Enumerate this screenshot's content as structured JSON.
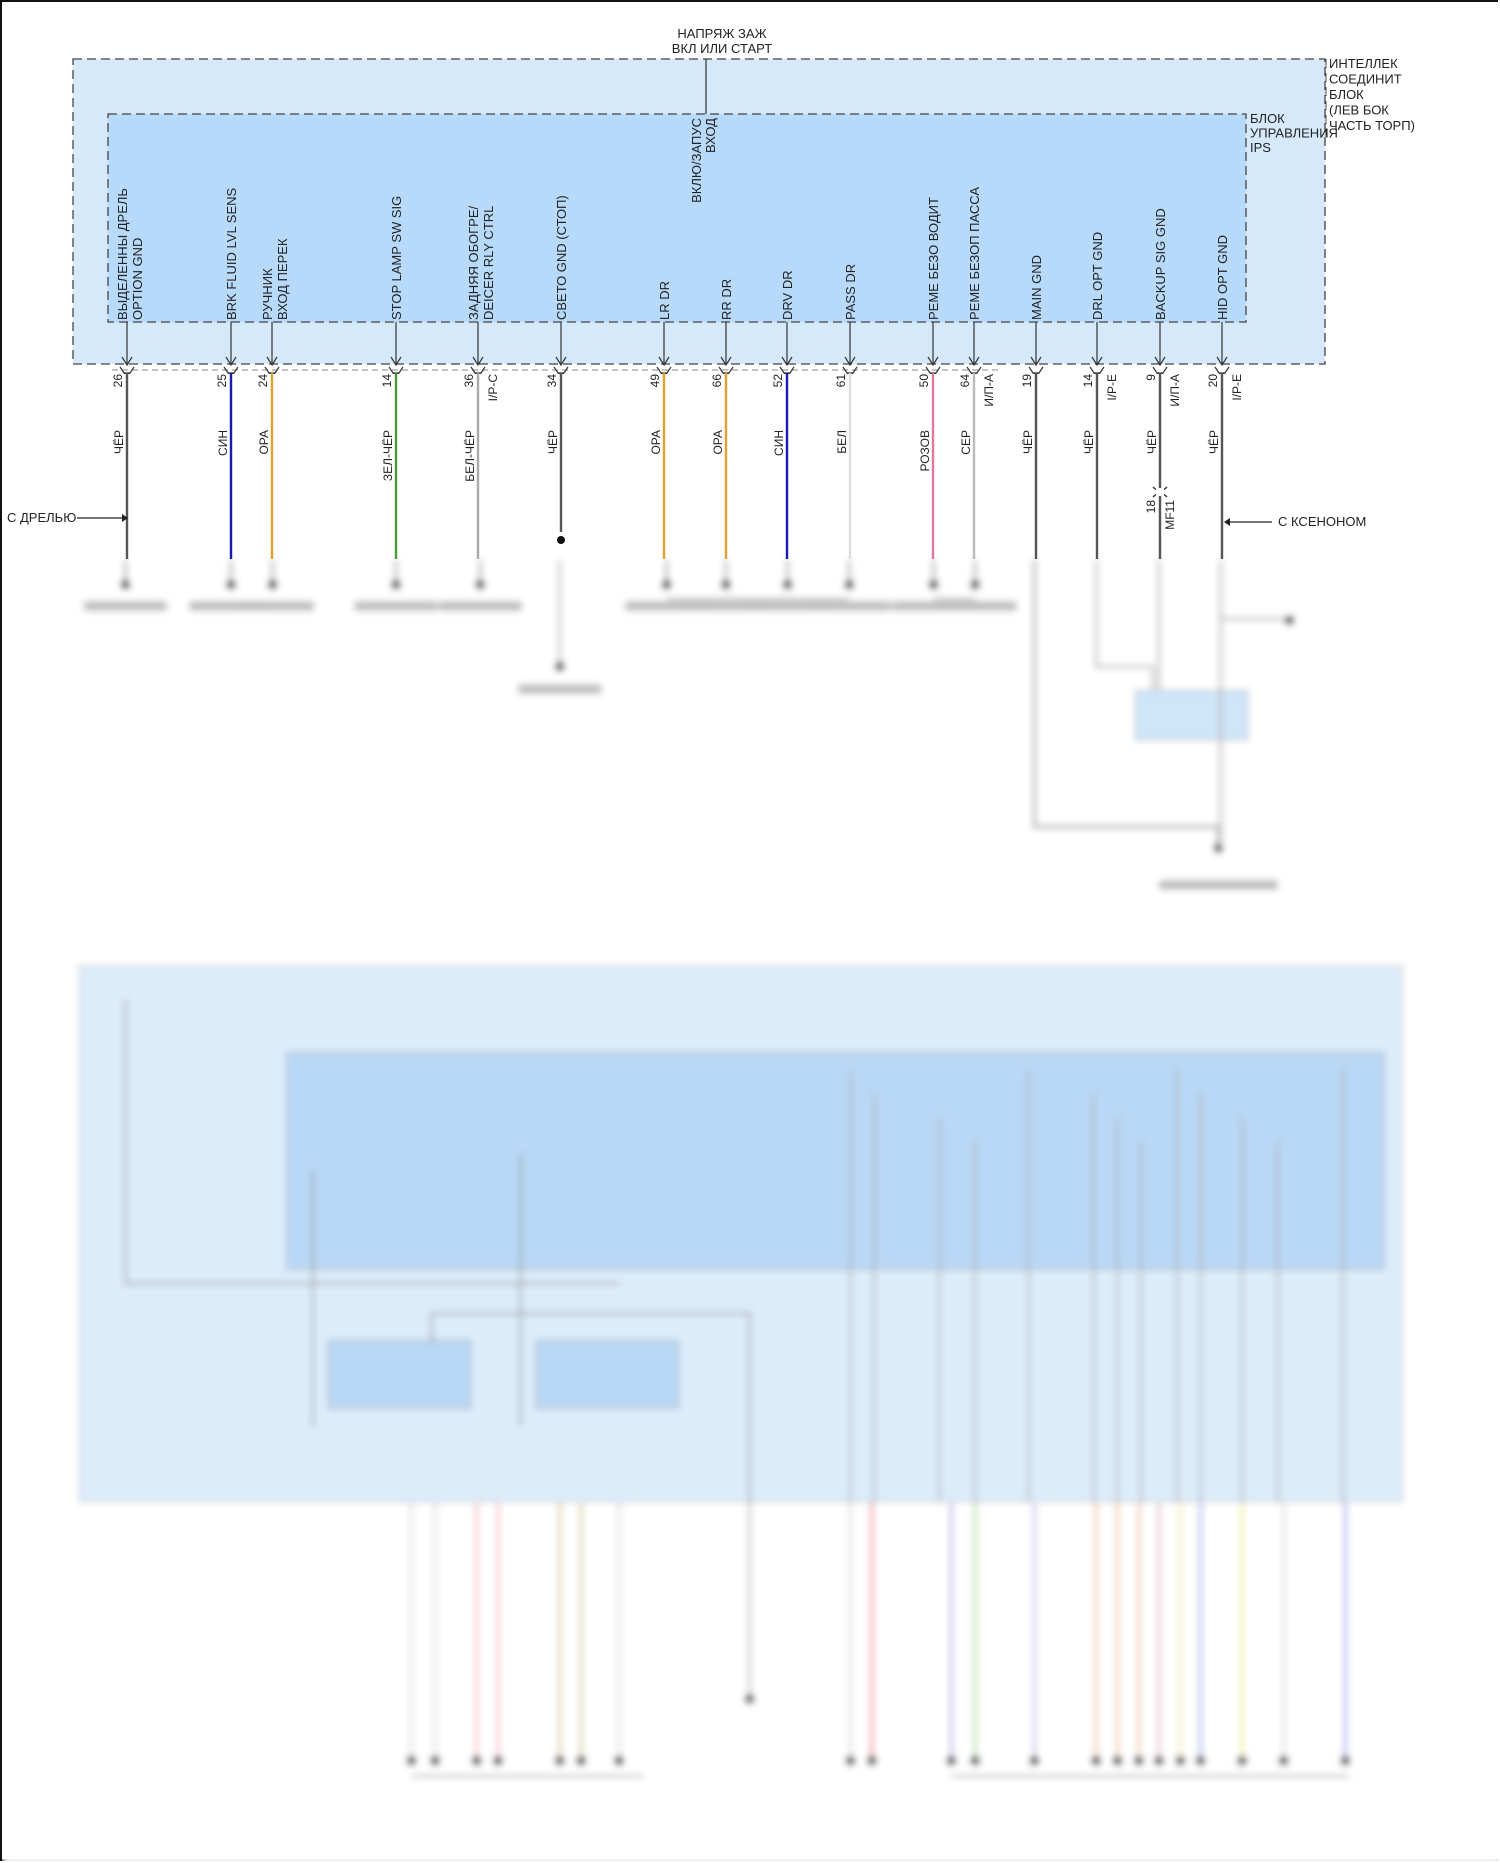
{
  "top_supply": {
    "line1": "НАПРЯЖ ЗАЖ",
    "line2": "ВКЛ ИЛИ СТАРТ"
  },
  "outer_module": {
    "lines": [
      "ИНТЕЛЛЕК",
      "СОЕДИНИТ",
      "БЛОК",
      "(ЛЕВ БОК",
      "ЧАСТЬ ТОРП)"
    ]
  },
  "inner_module": {
    "lines": [
      "БЛОК",
      "УПРАВЛЕНИЯ",
      "IPS"
    ]
  },
  "ign_input": {
    "line1": "ВКЛЮ/ЗАПУС",
    "line2": "ВХОД"
  },
  "pins": [
    {
      "label": [
        "ВЫДЕЛЕННЫ ДРЕЛЬ",
        "OPTION GND"
      ],
      "pin": "26",
      "connector": "",
      "wire_color": "ЧЁР",
      "color": "#555555"
    },
    {
      "label": [
        "BRK FLUID LVL SENS"
      ],
      "pin": "25",
      "connector": "",
      "wire_color": "СИН",
      "color": "#1a1ab0"
    },
    {
      "label": [
        "РУЧНИК",
        "ВХОД ПЕРЕК"
      ],
      "pin": "24",
      "connector": "",
      "wire_color": "ОРА",
      "color": "#e2a030"
    },
    {
      "label": [
        "STOP LAMP SW SIG"
      ],
      "pin": "14",
      "connector": "",
      "wire_color": "ЗЕЛ-ЧЁР",
      "color": "#4a9a3a"
    },
    {
      "label": [
        "ЗАДНЯЯ ОБОГРЕ/",
        "DEICER RLY CTRL"
      ],
      "pin": "36",
      "connector": "I/P-C",
      "wire_color": "БЕЛ-ЧЁР",
      "color": "#aaaaaa"
    },
    {
      "label": [
        "СВЕТО GND (СТОП)"
      ],
      "pin": "34",
      "connector": "",
      "wire_color": "ЧЁР",
      "color": "#555555"
    },
    {
      "label": [
        "LR DR"
      ],
      "pin": "49",
      "connector": "",
      "wire_color": "ОРА",
      "color": "#e2a030"
    },
    {
      "label": [
        "RR DR"
      ],
      "pin": "66",
      "connector": "",
      "wire_color": "ОРА",
      "color": "#e2a030"
    },
    {
      "label": [
        "DRV DR"
      ],
      "pin": "52",
      "connector": "",
      "wire_color": "СИН",
      "color": "#1a1ab0"
    },
    {
      "label": [
        "PASS DR"
      ],
      "pin": "61",
      "connector": "",
      "wire_color": "БЕЛ",
      "color": "#dddddd"
    },
    {
      "label": [
        "РЕМЕ БЕЗО ВОДИТ"
      ],
      "pin": "50",
      "connector": "",
      "wire_color": "РОЗОВ",
      "color": "#e07898"
    },
    {
      "label": [
        "РЕМЕ БЕЗОП ПАССА"
      ],
      "pin": "64",
      "connector": "И/П-А",
      "wire_color": "СЕР",
      "color": "#bbbbbb"
    },
    {
      "label": [
        "MAIN GND"
      ],
      "pin": "19",
      "connector": "",
      "wire_color": "ЧЁР",
      "color": "#555555"
    },
    {
      "label": [
        "DRL OPT GND"
      ],
      "pin": "14",
      "connector": "I/P-E",
      "wire_color": "ЧЁР",
      "color": "#555555"
    },
    {
      "label": [
        "BACKUP SIG GND"
      ],
      "pin": "9",
      "connector": "И/П-А",
      "wire_color": "ЧЁР",
      "color": "#555555"
    },
    {
      "label": [
        "HID OPT GND"
      ],
      "pin": "20",
      "connector": "I/P-E",
      "wire_color": "ЧЁР",
      "color": "#555555"
    }
  ],
  "inline_connector": {
    "pin": "18",
    "name": "MF11"
  },
  "notes": {
    "with_drill": "С ДРЕЛЬЮ",
    "with_xenon": "С КСЕНОНОМ"
  },
  "colors": {
    "outer_fill": "#d6e9fb",
    "inner_fill": "#b7dafa",
    "box_border": "#444444"
  }
}
